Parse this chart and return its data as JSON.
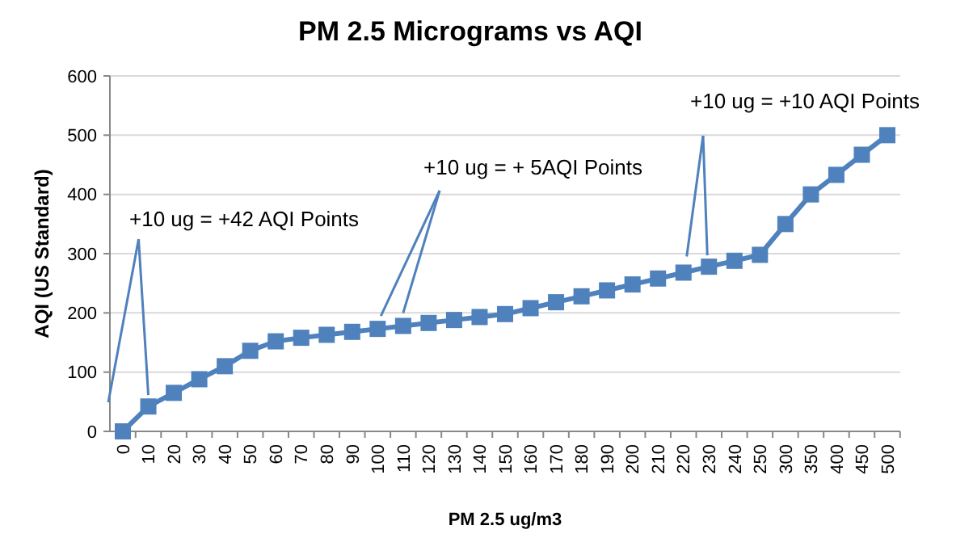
{
  "chart_data": {
    "type": "line",
    "title": "PM 2.5 Micrograms vs AQI",
    "xlabel": "PM 2.5 ug/m3",
    "ylabel": "AQI (US Standard)",
    "categories": [
      "0",
      "10",
      "20",
      "30",
      "40",
      "50",
      "60",
      "70",
      "80",
      "90",
      "100",
      "110",
      "120",
      "130",
      "140",
      "150",
      "160",
      "170",
      "180",
      "190",
      "200",
      "210",
      "220",
      "230",
      "240",
      "250",
      "300",
      "350",
      "400",
      "450",
      "500"
    ],
    "series": [
      {
        "color": "#4f81bd",
        "values": [
          0,
          42,
          65,
          88,
          110,
          136,
          152,
          158,
          163,
          168,
          173,
          178,
          183,
          188,
          193,
          198,
          208,
          218,
          228,
          238,
          248,
          258,
          268,
          278,
          288,
          298,
          350,
          400,
          433,
          467,
          500
        ]
      }
    ],
    "ylim": [
      0,
      600
    ],
    "yticks": [
      0,
      100,
      200,
      300,
      400,
      500,
      600
    ],
    "grid": "y",
    "marker": "square",
    "line_style": "solid",
    "annotations": [
      {
        "text": "+10 ug = +42 AQI Points",
        "x": "10",
        "y": 42
      },
      {
        "text": "+10 ug = + 5AQI Points",
        "x": "100",
        "y": 173
      },
      {
        "text": "+10 ug = +10 AQI Points",
        "x": "230",
        "y": 278
      }
    ]
  }
}
